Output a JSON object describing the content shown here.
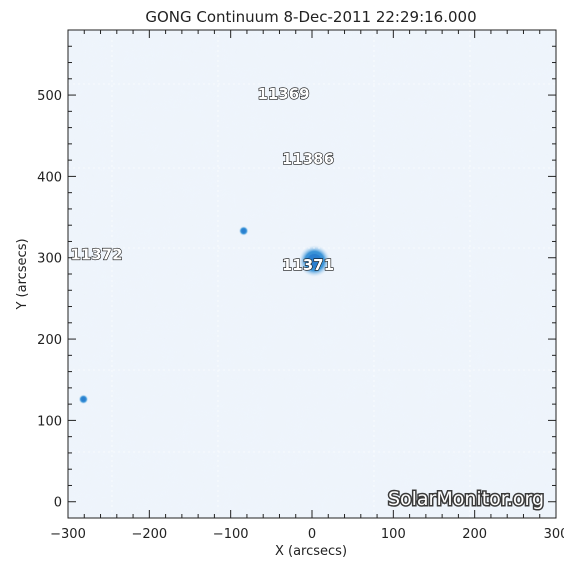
{
  "title": "GONG Continuum   8-Dec-2011  22:29:16.000",
  "x_axis": {
    "label": "X (arcsecs)",
    "range": [
      -300,
      300
    ],
    "ticks": [
      "−300",
      "−200",
      "−100",
      "0",
      "100",
      "200",
      "300"
    ]
  },
  "y_axis": {
    "label": "Y (arcsecs)",
    "range": [
      -20,
      580
    ],
    "ticks": [
      "0",
      "100",
      "200",
      "300",
      "400",
      "500"
    ]
  },
  "regions": [
    {
      "label": "11369",
      "x": -35,
      "y": 495
    },
    {
      "label": "11386",
      "x": -5,
      "y": 415
    },
    {
      "label": "11372",
      "x": -265,
      "y": 298
    },
    {
      "label": "11371",
      "x": -5,
      "y": 285
    }
  ],
  "sunspots": [
    {
      "name": "sunspot-11371",
      "x": 3,
      "y": 296,
      "r": 10
    },
    {
      "name": "sunspot-small-a",
      "x": -84,
      "y": 333,
      "r": 3
    },
    {
      "name": "sunspot-small-b",
      "x": -281,
      "y": 126,
      "r": 3
    }
  ],
  "watermark": "SolarMonitor.org",
  "colors": {
    "background": "#eef4fb",
    "granulation": "#e2edf8",
    "spot": "#3c95d8",
    "spot_core": "#2a7fcf"
  }
}
